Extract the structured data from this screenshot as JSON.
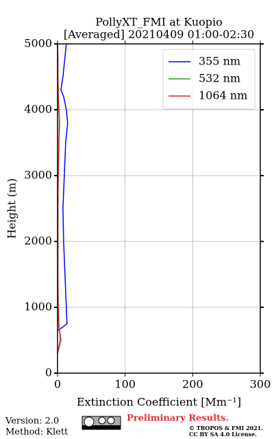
{
  "chart_data": {
    "type": "line",
    "title": [
      "PollyXT_FMI at Kuopio",
      "[Averaged] 20210409 01:00-02:30"
    ],
    "x_label": "Extinction Coefficient [Mm⁻¹]",
    "y_label": "Height (m)",
    "y": [
      300,
      500,
      650,
      700,
      750,
      1000,
      1500,
      2000,
      2500,
      3000,
      3500,
      3800,
      4000,
      4200,
      4300,
      4500,
      4800,
      5000
    ],
    "series": [
      {
        "name": "355 nm",
        "color": "#0000ff",
        "values": [
          null,
          null,
          0,
          8,
          14,
          13,
          11,
          9,
          8,
          10,
          12,
          15,
          13,
          9,
          5,
          8,
          11,
          13
        ]
      },
      {
        "name": "532 nm",
        "color": "#2ca02c",
        "values": [
          0,
          4,
          3,
          2,
          1.5,
          1,
          0.5,
          0.5,
          0.5,
          1,
          2,
          2.5,
          2,
          1,
          1,
          0.5,
          0.5,
          0
        ]
      },
      {
        "name": "1064 nm",
        "color": "#d62728",
        "values": [
          0,
          5,
          3,
          2,
          2,
          1,
          0.5,
          0.5,
          0.5,
          1,
          2,
          3,
          2,
          1,
          1,
          0.5,
          0.5,
          0
        ]
      }
    ],
    "xlim": [
      0,
      300
    ],
    "xticks": [
      0,
      100,
      200,
      300
    ],
    "ylim": [
      0,
      5000
    ],
    "yticks": [
      0,
      1000,
      2000,
      3000,
      4000,
      5000
    ],
    "grid": true,
    "legend": "upper right"
  },
  "footer": {
    "version": "Version: 2.0",
    "method": "Method: Klett",
    "preliminary": "Preliminary Results.",
    "copyright": "© TROPOS & FMI 2021.",
    "license": "CC BY SA 4.0 License."
  }
}
